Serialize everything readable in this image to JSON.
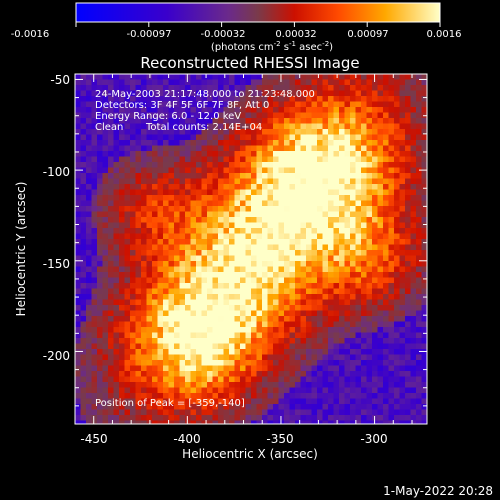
{
  "chart_data": {
    "type": "heatmap",
    "title": "Reconstructed RHESSI Image",
    "xlabel": "Heliocentric X (arcsec)",
    "ylabel": "Heliocentric Y (arcsec)",
    "xlim": [
      -460,
      -272
    ],
    "ylim": [
      -240,
      -47
    ],
    "x_ticks": [
      -450,
      -400,
      -350,
      -300
    ],
    "y_ticks": [
      -50,
      -100,
      -150,
      -200
    ],
    "colorbar": {
      "min": -0.0016,
      "max": 0.0016,
      "tick_labels": [
        "-0.0016",
        "-0.00097",
        "-0.00032",
        "0.00032",
        "0.00097",
        "0.0016"
      ],
      "unit_prefix": "(photons cm",
      "unit_sup1": "-2",
      "unit_mid1": " s",
      "unit_sup2": "-1",
      "unit_mid2": " asec",
      "unit_sup3": "-2",
      "unit_suffix": ")"
    },
    "annotations": {
      "time_range": "24-May-2003 21:17:48.000 to 21:23:48.000",
      "detectors": "Detectors: 3F 4F 5F 6F 7F 8F, Att 0",
      "energy": "Energy Range: 6.0 - 12.0 keV",
      "clean": "Clean",
      "total_counts": "Total counts: 2.14E+04",
      "peak": "Position of Peak = [-359,-140]"
    },
    "peak": {
      "x": -359,
      "y": -140
    },
    "footer_date": "1-May-2022 20:28"
  }
}
